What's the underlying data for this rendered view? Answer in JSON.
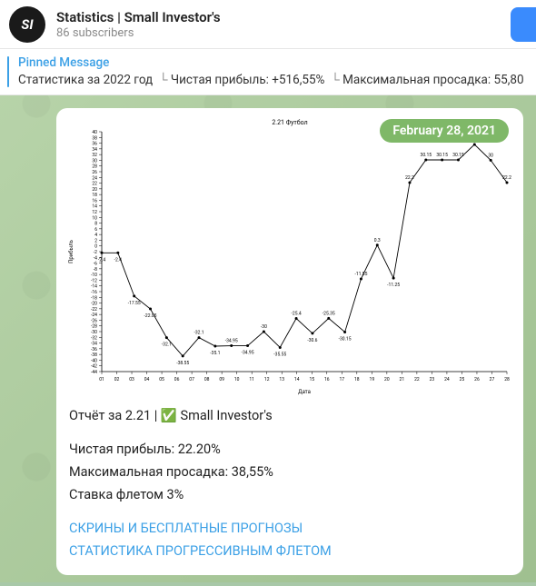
{
  "header": {
    "avatar_text": "SI",
    "title": "Statistics | Small Investor's",
    "subscribers": "86 subscribers"
  },
  "pinned": {
    "label": "Pinned Message",
    "text_main": "Статистика за 2022 год",
    "text_p1": "Чистая прибыль: +516,55%",
    "text_p2": "Максимальная просадка: 55,80"
  },
  "message": {
    "date_badge": "February 28, 2021",
    "report_line": "Отчёт за 2.21 | ✅ Small Investor's",
    "profit_line": "Чистая прибыль: 22.20%",
    "drawdown_line": "Максимальная просадка: 38,55%",
    "stake_line": "Ставка флетом 3%",
    "link1": "СКРИНЫ И БЕСПЛАТНЫЕ ПРОГНОЗЫ",
    "link2": "СТАТИСТИКА ПРОГРЕССИВНЫМ ФЛЕТОМ"
  },
  "chart": {
    "title": "2.21 Футбол",
    "xlabel": "Дата",
    "ylabel": "Прибыль",
    "type": "line",
    "line_color": "#000000",
    "background_color": "#ffffff",
    "axis_color": "#000000",
    "font_size": 6,
    "x_categories": [
      "01",
      "02",
      "03",
      "04",
      "05",
      "06",
      "07",
      "08",
      "09",
      "10",
      "11",
      "12",
      "13",
      "14",
      "15",
      "16",
      "17",
      "18",
      "19",
      "20",
      "21",
      "22",
      "23",
      "24",
      "25",
      "26",
      "27",
      "28"
    ],
    "values": [
      -2.4,
      -2.4,
      -17.55,
      -22.05,
      -32.1,
      -38.55,
      -32.1,
      -35.1,
      -34.95,
      -34.95,
      -30,
      -35.55,
      -25.4,
      -30.6,
      -25.35,
      -30.15,
      -11.55,
      0.3,
      -11.25,
      22.2,
      30.15,
      30.15,
      30.15,
      35.55,
      30,
      22.2
    ],
    "point_labels": [
      "-2.4",
      "-2.4",
      "-17.55",
      "-22.05",
      "-32.1",
      "-38.55",
      "-32.1",
      "-35.1",
      "-34.95",
      "-34.95",
      "-30",
      "-35.55",
      "-25.4",
      "-30.6",
      "-25.35",
      "-30.15",
      "-11.55",
      "0.3",
      "-11.25",
      "22.2",
      "30.15",
      "30.15",
      "30.15",
      "35.55",
      "30",
      "22.2"
    ],
    "ylim": [
      -44,
      40
    ],
    "ytick_step": 2,
    "marker": "circle",
    "marker_size": 1.5
  }
}
